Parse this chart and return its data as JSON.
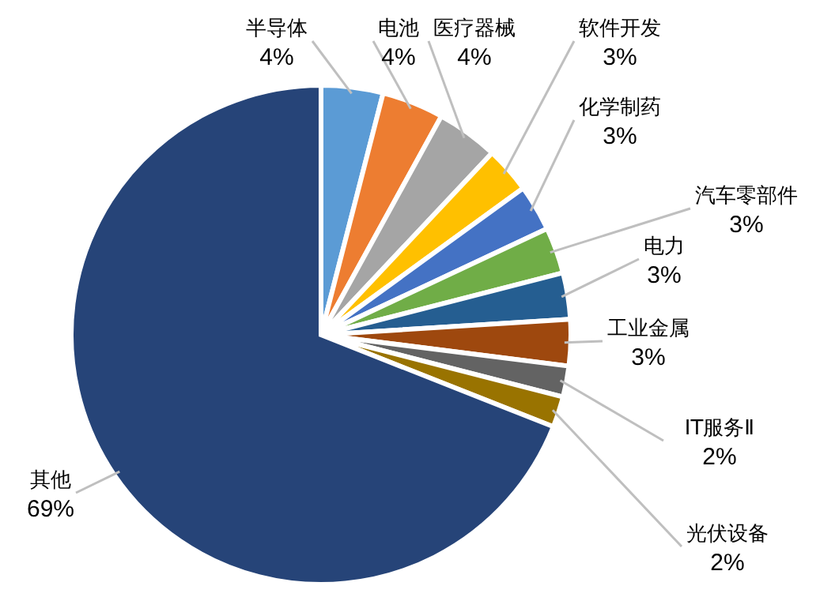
{
  "chart_data": {
    "type": "pie",
    "categories": [
      "半导体",
      "电池",
      "医疗器械",
      "软件开发",
      "化学制药",
      "汽车零部件",
      "电力",
      "工业金属",
      "IT服务Ⅱ",
      "光伏设备",
      "其他"
    ],
    "values": [
      4,
      4,
      4,
      3,
      3,
      3,
      3,
      3,
      2,
      2,
      69
    ],
    "value_labels": [
      "4%",
      "4%",
      "4%",
      "3%",
      "3%",
      "3%",
      "3%",
      "3%",
      "2%",
      "2%",
      "69%"
    ],
    "colors": [
      "#5b9bd5",
      "#ed7d31",
      "#a5a5a5",
      "#ffc000",
      "#4472c4",
      "#70ad47",
      "#255e91",
      "#9e480e",
      "#636363",
      "#997300",
      "#264478"
    ]
  }
}
